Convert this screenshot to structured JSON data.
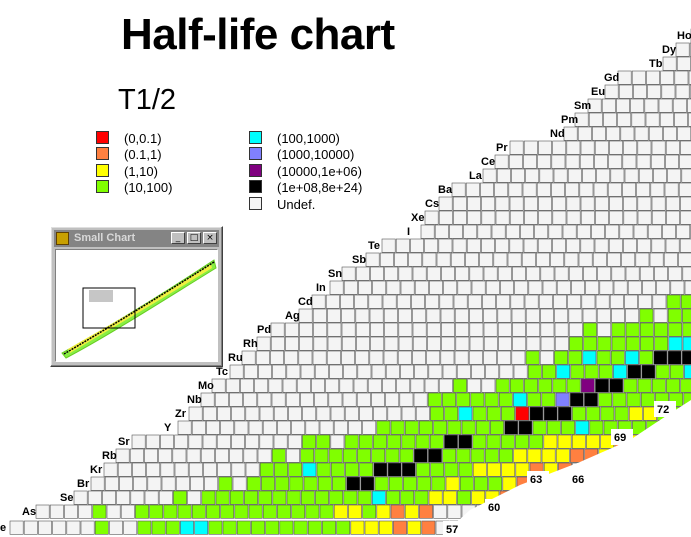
{
  "title": "Half-life chart",
  "legend": {
    "title": "T1/2",
    "items": [
      {
        "label": "(0,0.1)",
        "color": "#ff0000"
      },
      {
        "label": "(0.1,1)",
        "color": "#ff8040"
      },
      {
        "label": "(1,10)",
        "color": "#ffff00"
      },
      {
        "label": "(10,100)",
        "color": "#80ff00"
      },
      {
        "label": "(100,1000)",
        "color": "#00ffff"
      },
      {
        "label": "(1000,10000)",
        "color": "#8080ff"
      },
      {
        "label": "(10000,1e+06)",
        "color": "#800080"
      },
      {
        "label": "(1e+08,8e+24)",
        "color": "#000000"
      },
      {
        "label": "Undef.",
        "color": "#f4f4f4"
      }
    ]
  },
  "small_chart_window": {
    "title": "Small Chart",
    "buttons": {
      "minimize": "_",
      "maximize": "□",
      "close": "×"
    }
  },
  "chart_data": {
    "type": "heatmap",
    "elements": [
      "As",
      "e",
      "Se",
      "Br",
      "Kr",
      "Rb",
      "Sr",
      "Y",
      "Zr",
      "Nb",
      "Mo",
      "Tc",
      "Ru",
      "Rh",
      "Pd",
      "Ag",
      "Cd",
      "In",
      "Sn",
      "Sb",
      "Te",
      "I",
      "Xe",
      "Cs",
      "Ba",
      "La",
      "Ce",
      "Pr",
      "Nd",
      "Pm",
      "Sm",
      "Eu",
      "Gd",
      "Tb",
      "Dy",
      "Ho"
    ],
    "neutron_labels": [
      "57",
      "60",
      "63",
      "66",
      "69",
      "72"
    ],
    "colors": {
      "red": "#ff0000",
      "orange": "#ff8040",
      "yellow": "#ffff00",
      "green": "#80ff00",
      "cyan": "#00ffff",
      "blue": "#8080ff",
      "purple": "#800080",
      "black": "#000000",
      "undef": "#f4f4f4"
    }
  }
}
